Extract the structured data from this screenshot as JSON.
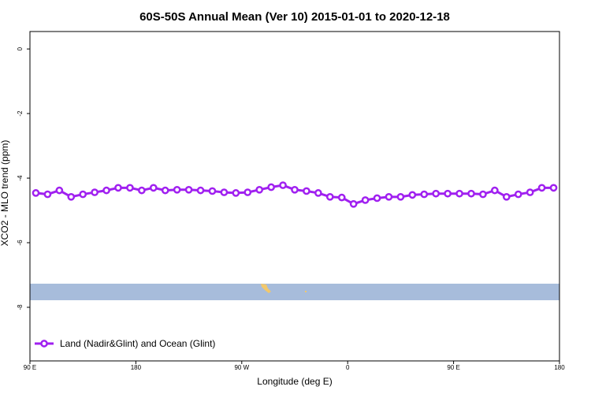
{
  "chart_data": {
    "type": "line",
    "title": "60S-50S Annual Mean (Ver 10)   2015-01-01 to 2020-12-18",
    "x_label": "Longitude (deg E)",
    "y_label": "XCO2 - MLO trend (ppm)",
    "x": [
      95,
      105,
      115,
      125,
      135,
      145,
      155,
      165,
      175,
      185,
      195,
      205,
      215,
      225,
      235,
      245,
      255,
      265,
      275,
      285,
      295,
      305,
      315,
      325,
      335,
      345,
      355,
      365,
      375,
      385,
      395,
      405,
      415,
      425,
      435,
      445,
      455,
      465,
      475,
      485,
      495,
      505,
      515,
      525,
      535
    ],
    "series": [
      {
        "name": "Land (Nadir&Glint) and Ocean (Glint)",
        "color": "#a020f0",
        "values": [
          -4.46,
          -4.5,
          -4.38,
          -4.58,
          -4.5,
          -4.44,
          -4.38,
          -4.3,
          -4.3,
          -4.38,
          -4.3,
          -4.38,
          -4.36,
          -4.36,
          -4.38,
          -4.4,
          -4.44,
          -4.46,
          -4.44,
          -4.36,
          -4.28,
          -4.22,
          -4.36,
          -4.4,
          -4.46,
          -4.58,
          -4.6,
          -4.8,
          -4.68,
          -4.62,
          -4.58,
          -4.58,
          -4.52,
          -4.5,
          -4.48,
          -4.48,
          -4.48,
          -4.48,
          -4.5,
          -4.38,
          -4.58,
          -4.5,
          -4.44,
          -4.3,
          -4.3
        ]
      }
    ],
    "xlim": [
      90,
      540
    ],
    "xticks": [
      {
        "value": 90,
        "label": "90 E"
      },
      180,
      {
        "value": 270,
        "label": "90 W"
      },
      {
        "value": 360,
        "label": "0"
      },
      {
        "value": 450,
        "label": "90 E"
      },
      {
        "value": 540,
        "label": "180"
      }
    ],
    "ylim": [
      -9.66,
      0.54
    ],
    "yticks": [
      0,
      -2,
      -4,
      -6,
      -8
    ],
    "legend": "bottom-left"
  }
}
